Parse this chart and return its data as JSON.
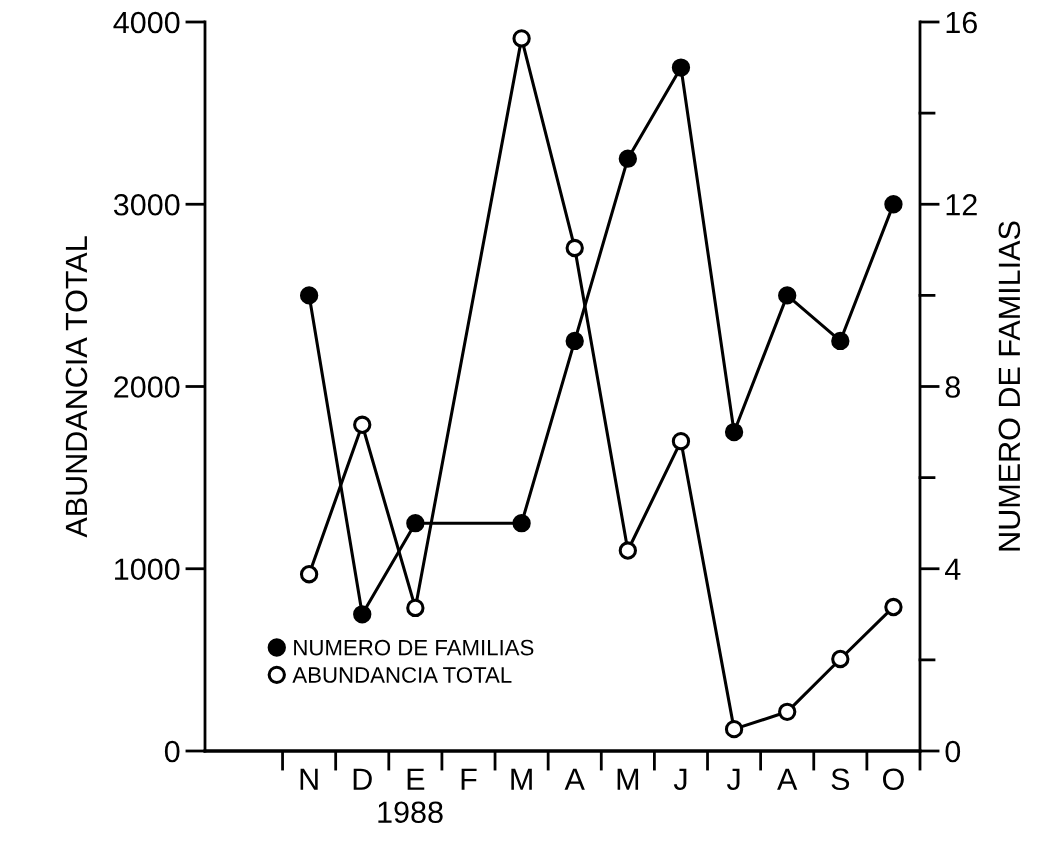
{
  "chart_data": {
    "type": "line",
    "ylabel": "ABUNDANCIA TOTAL",
    "y2label": "NUMERO DE FAMILIAS",
    "categories": [
      "N",
      "D",
      "E",
      "F",
      "M",
      "A",
      "M",
      "J",
      "J",
      "A",
      "S",
      "O"
    ],
    "series": [
      {
        "name": "NUMERO DE FAMILIAS",
        "color": "#000000",
        "axis": "y2",
        "values": [
          10,
          3,
          5,
          null,
          5,
          9,
          13,
          15,
          7,
          10,
          9,
          12
        ]
      },
      {
        "name": "ABUNDANCIA TOTAL",
        "color": "#000000",
        "axis": "y",
        "values": [
          970,
          1790,
          785,
          null,
          3910,
          2760,
          1100,
          1700,
          120,
          215,
          505,
          790
        ]
      }
    ],
    "ylim": [
      0,
      4000
    ],
    "yticks": [
      0,
      1000,
      2000,
      3000,
      4000
    ],
    "y2lim": [
      0,
      16
    ],
    "y2ticks": [
      0,
      {
        "value": 2,
        "label": null
      },
      4,
      {
        "value": 6,
        "label": null
      },
      8,
      {
        "value": 10,
        "label": null
      },
      12,
      {
        "value": 14,
        "label": null
      },
      16
    ],
    "annotations": [
      "1988"
    ],
    "marker": "circle",
    "legend": "bottom left",
    "grid": false
  }
}
